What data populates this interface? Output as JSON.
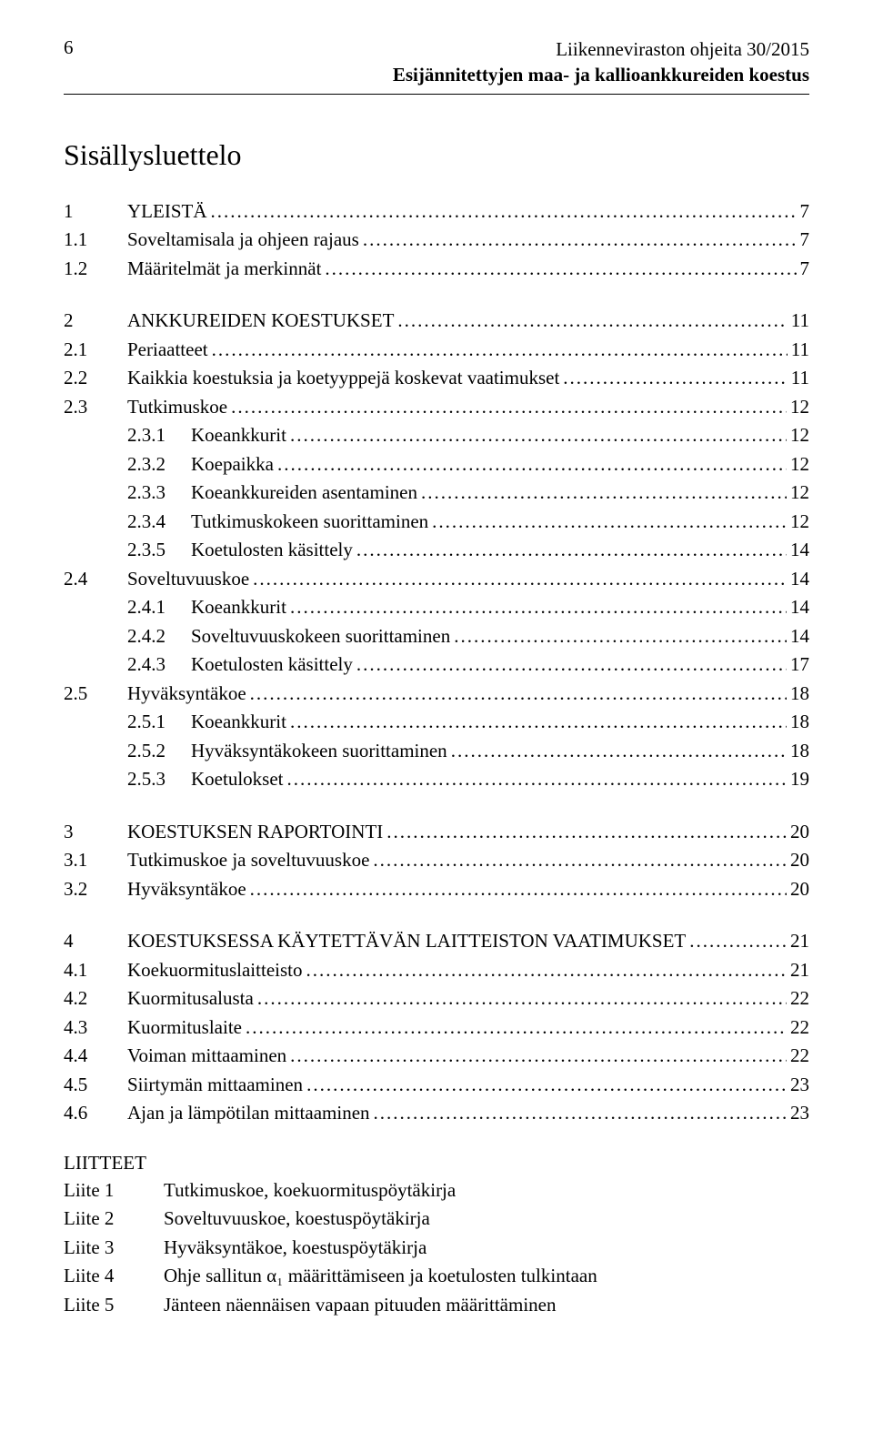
{
  "header": {
    "page_number": "6",
    "title_line1": "Liikenneviraston ohjeita 30/2015",
    "title_line2": "Esijännitettyjen maa- ja kallioankkureiden koestus"
  },
  "toc_title": "Sisällysluettelo",
  "toc_blocks": [
    [
      {
        "level": 1,
        "num": "1",
        "label": "YLEISTÄ",
        "page": "7"
      },
      {
        "level": 2,
        "num": "1.1",
        "label": "Soveltamisala ja ohjeen rajaus",
        "page": "7"
      },
      {
        "level": 2,
        "num": "1.2",
        "label": "Määritelmät ja merkinnät",
        "page": "7"
      }
    ],
    [
      {
        "level": 1,
        "num": "2",
        "label": "ANKKUREIDEN KOESTUKSET",
        "page": "11"
      },
      {
        "level": 2,
        "num": "2.1",
        "label": "Periaatteet",
        "page": "11"
      },
      {
        "level": 2,
        "num": "2.2",
        "label": "Kaikkia koestuksia ja koetyyppejä koskevat vaatimukset",
        "page": "11"
      },
      {
        "level": 2,
        "num": "2.3",
        "label": "Tutkimuskoe",
        "page": "12"
      },
      {
        "level": 3,
        "num": "2.3.1",
        "label": "Koeankkurit",
        "page": "12"
      },
      {
        "level": 3,
        "num": "2.3.2",
        "label": "Koepaikka",
        "page": "12"
      },
      {
        "level": 3,
        "num": "2.3.3",
        "label": "Koeankkureiden asentaminen",
        "page": "12"
      },
      {
        "level": 3,
        "num": "2.3.4",
        "label": "Tutkimuskokeen suorittaminen",
        "page": "12"
      },
      {
        "level": 3,
        "num": "2.3.5",
        "label": "Koetulosten käsittely",
        "page": "14"
      },
      {
        "level": 2,
        "num": "2.4",
        "label": "Soveltuvuuskoe",
        "page": "14"
      },
      {
        "level": 3,
        "num": "2.4.1",
        "label": "Koeankkurit",
        "page": "14"
      },
      {
        "level": 3,
        "num": "2.4.2",
        "label": "Soveltuvuuskokeen suorittaminen",
        "page": "14"
      },
      {
        "level": 3,
        "num": "2.4.3",
        "label": "Koetulosten käsittely",
        "page": "17"
      },
      {
        "level": 2,
        "num": "2.5",
        "label": "Hyväksyntäkoe",
        "page": "18"
      },
      {
        "level": 3,
        "num": "2.5.1",
        "label": "Koeankkurit",
        "page": "18"
      },
      {
        "level": 3,
        "num": "2.5.2",
        "label": "Hyväksyntäkokeen suorittaminen",
        "page": "18"
      },
      {
        "level": 3,
        "num": "2.5.3",
        "label": "Koetulokset",
        "page": "19"
      }
    ],
    [
      {
        "level": 1,
        "num": "3",
        "label": "KOESTUKSEN RAPORTOINTI",
        "page": "20"
      },
      {
        "level": 2,
        "num": "3.1",
        "label": "Tutkimuskoe ja soveltuvuuskoe",
        "page": "20"
      },
      {
        "level": 2,
        "num": "3.2",
        "label": "Hyväksyntäkoe",
        "page": "20"
      }
    ],
    [
      {
        "level": 1,
        "num": "4",
        "label": "KOESTUKSESSA KÄYTETTÄVÄN LAITTEISTON VAATIMUKSET",
        "page": "21"
      },
      {
        "level": 2,
        "num": "4.1",
        "label": "Koekuormituslaitteisto",
        "page": "21"
      },
      {
        "level": 2,
        "num": "4.2",
        "label": "Kuormitusalusta",
        "page": "22"
      },
      {
        "level": 2,
        "num": "4.3",
        "label": "Kuormituslaite",
        "page": "22"
      },
      {
        "level": 2,
        "num": "4.4",
        "label": "Voiman mittaaminen",
        "page": "22"
      },
      {
        "level": 2,
        "num": "4.5",
        "label": "Siirtymän mittaaminen",
        "page": "23"
      },
      {
        "level": 2,
        "num": "4.6",
        "label": "Ajan ja lämpötilan mittaaminen",
        "page": "23"
      }
    ]
  ],
  "appendix": {
    "title": "LIITTEET",
    "items": [
      {
        "key": "Liite 1",
        "desc": "Tutkimuskoe, koekuormituspöytäkirja"
      },
      {
        "key": "Liite 2",
        "desc": "Soveltuvuuskoe, koestuspöytäkirja"
      },
      {
        "key": "Liite 3",
        "desc": "Hyväksyntäkoe, koestuspöytäkirja"
      },
      {
        "key": "Liite 4",
        "desc": "Ohje sallitun α₁ määrittämiseen ja koetulosten tulkintaan"
      },
      {
        "key": "Liite 5",
        "desc": "Jänteen näennäisen vapaan pituuden määrittäminen"
      }
    ]
  }
}
